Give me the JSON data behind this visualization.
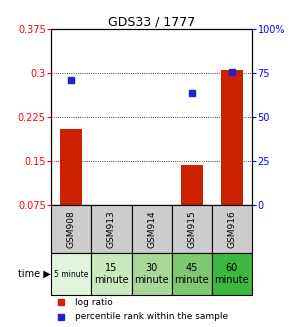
{
  "title": "GDS33 / 1777",
  "samples": [
    "GSM908",
    "GSM913",
    "GSM914",
    "GSM915",
    "GSM916"
  ],
  "time_labels": [
    "5 minute",
    "15\nminute",
    "30\nminute",
    "45\nminute",
    "60\nminute"
  ],
  "time_colors": [
    "#e0f5dc",
    "#c8eabc",
    "#a8d898",
    "#7ec870",
    "#3cb840"
  ],
  "log_ratio": [
    0.205,
    0.0,
    0.0,
    0.143,
    0.305
  ],
  "percentile_rank_left": [
    0.288,
    null,
    null,
    0.267,
    0.303
  ],
  "ylim_left": [
    0.075,
    0.375
  ],
  "ylim_right": [
    0,
    100
  ],
  "yticks_left": [
    0.075,
    0.15,
    0.225,
    0.3,
    0.375
  ],
  "yticks_right": [
    0,
    25,
    50,
    75,
    100
  ],
  "ytick_labels_left": [
    "0.075",
    "0.15",
    "0.225",
    "0.3",
    "0.375"
  ],
  "ytick_labels_right": [
    "0",
    "25",
    "50",
    "75",
    "100%"
  ],
  "bar_color": "#cc2200",
  "dot_color": "#2222cc",
  "background_color": "#ffffff",
  "sample_box_color": "#cccccc",
  "legend_bar_label": "log ratio",
  "legend_dot_label": "percentile rank within the sample"
}
